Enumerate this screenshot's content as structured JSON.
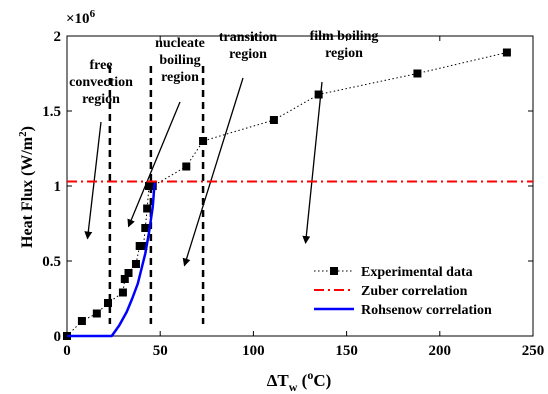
{
  "chart_data": {
    "type": "scatter",
    "title": "",
    "xlabel": {
      "main": "ΔT",
      "sub": "w",
      "open": " (",
      "sup": "o",
      "unit": "C)"
    },
    "ylabel": "Heat Flux (W/m",
    "ylabel_sup": "2",
    "ylabel_close": ")",
    "y_multiplier": {
      "base": "×10",
      "exp": "6"
    },
    "xlim": [
      0,
      250
    ],
    "ylim": [
      0,
      2000000
    ],
    "x_ticks": [
      0,
      50,
      100,
      150,
      200,
      250
    ],
    "y_ticks": [
      {
        "value": 0,
        "label": "0"
      },
      {
        "value": 500000,
        "label": "0.5"
      },
      {
        "value": 1000000,
        "label": "1"
      },
      {
        "value": 1500000,
        "label": "1.5"
      },
      {
        "value": 2000000,
        "label": "2"
      }
    ],
    "grid": false,
    "legend_position": "bottom-right",
    "series": [
      {
        "name": "Experimental data",
        "style": "dotted-line-square-markers",
        "color": "#000000",
        "x": [
          0,
          8,
          16,
          22,
          30,
          31,
          33,
          37,
          39,
          41,
          42,
          43,
          44,
          46,
          64,
          73,
          111,
          135,
          188,
          236
        ],
        "y": [
          0,
          100000,
          150000,
          220000,
          290000,
          380000,
          420000,
          480000,
          600000,
          600000,
          720000,
          850000,
          1000000,
          1000000,
          1130000,
          1300000,
          1440000,
          1610000,
          1750000,
          1890000
        ]
      },
      {
        "name": "Zuber correlation",
        "style": "dash-dot",
        "color": "#ff0000",
        "x": [
          0,
          250
        ],
        "y": [
          1030000,
          1030000
        ]
      },
      {
        "name": "Rohsenow correlation",
        "style": "solid",
        "color": "#0000ff",
        "x": [
          0,
          24,
          28,
          32,
          35,
          38,
          40,
          42,
          44,
          46,
          47
        ],
        "y": [
          0,
          0,
          70000,
          160000,
          250000,
          350000,
          450000,
          550000,
          690000,
          860000,
          1020000
        ]
      }
    ],
    "vlines_x": [
      23,
      45,
      73
    ],
    "annotations": [
      {
        "lines": [
          "free",
          "convection",
          "region"
        ],
        "arrow_to": [
          11,
          650000
        ]
      },
      {
        "lines": [
          "nucleate",
          "boiling",
          "region"
        ],
        "arrow_to": [
          33,
          730000
        ]
      },
      {
        "lines": [
          "transition",
          "region"
        ],
        "arrow_to": [
          63,
          470000
        ]
      },
      {
        "lines": [
          "film boiling",
          "region"
        ],
        "arrow_to": [
          128,
          620000
        ]
      }
    ]
  }
}
